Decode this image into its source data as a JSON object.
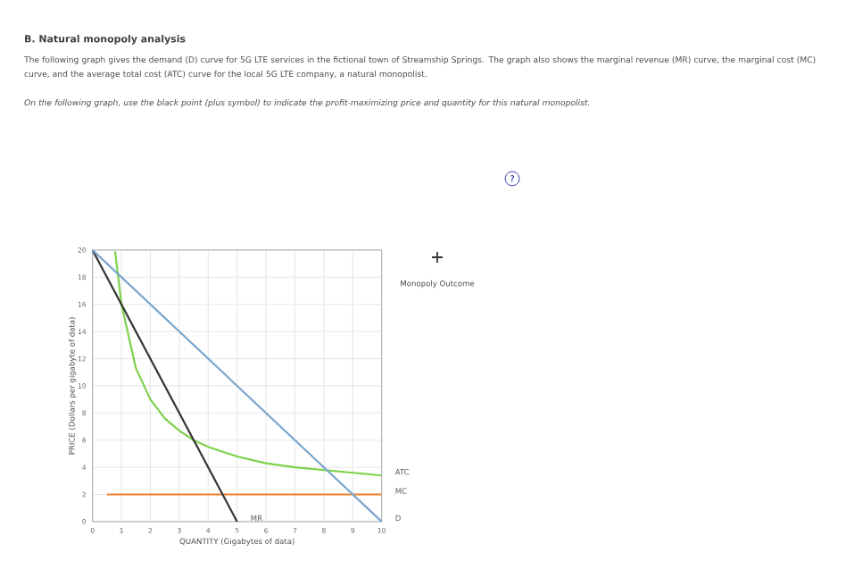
{
  "chart_data": {
    "type": "line",
    "title": "B. Natural monopoly analysis",
    "annotations": [
      "The following graph gives the demand (D) curve for 5G LTE services in the fictional town of Streamship Springs. The graph also shows the marginal revenue (MR) curve, the marginal cost (MC) curve, and the average total cost (ATC) curve for the local 5G LTE company, a natural monopolist.",
      "On the following graph, use the black point (plus symbol) to indicate the profit-maximizing price and quantity for this natural monopolist.",
      "Monopoly Outcome",
      "?"
    ],
    "xlabel": "QUANTITY (Gigabytes of data)",
    "ylabel": "PRICE (Dollars per gigabyte of data)",
    "xlim": [
      0,
      10
    ],
    "ylim": [
      0,
      20
    ],
    "xticks": [
      0,
      1,
      2,
      3,
      4,
      5,
      6,
      7,
      8,
      9,
      10
    ],
    "yticks": [
      0,
      2,
      4,
      6,
      8,
      10,
      12,
      14,
      16,
      18,
      20
    ],
    "grid": true,
    "legend": false,
    "marker": "none",
    "series": [
      {
        "name": "MC",
        "color": "#f07f2a",
        "x": [
          0.5,
          10
        ],
        "values": [
          2,
          2
        ]
      },
      {
        "name": "ATC",
        "color": "#7dd24a",
        "x": [
          0.78,
          1,
          1.5,
          2,
          2.5,
          3,
          3.5,
          4,
          5,
          6,
          7,
          8,
          9,
          10
        ],
        "values": [
          19.9,
          16,
          11.3,
          9,
          7.6,
          6.7,
          6,
          5.5,
          4.8,
          4.3,
          4,
          3.8,
          3.6,
          3.4
        ]
      },
      {
        "name": "MR",
        "color": "#333333",
        "x": [
          0,
          5
        ],
        "values": [
          20,
          0
        ]
      },
      {
        "name": "D",
        "color": "#7aa6d0",
        "x": [
          0,
          10
        ],
        "values": [
          20,
          0
        ]
      }
    ]
  }
}
